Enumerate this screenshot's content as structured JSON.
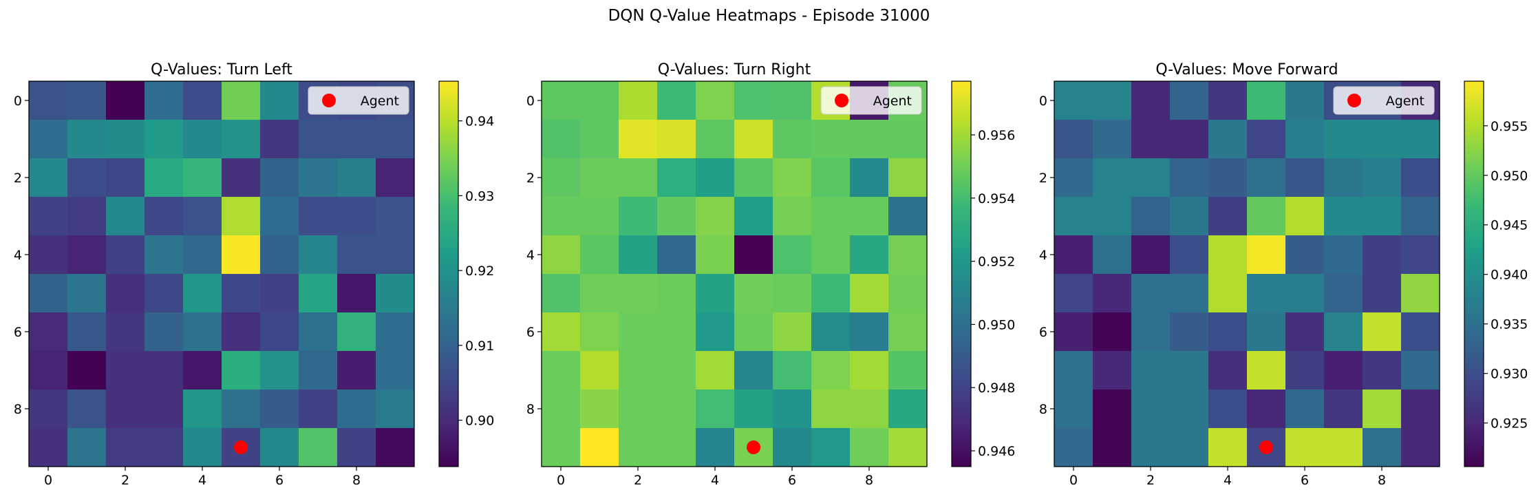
{
  "figure": {
    "suptitle": "DQN Q-Value Heatmaps - Episode 31000"
  },
  "colormap": {
    "name": "viridis",
    "stops": [
      "#440154",
      "#482878",
      "#3e4989",
      "#31688e",
      "#26828e",
      "#1f9e89",
      "#35b779",
      "#6ece58",
      "#b5de2b",
      "#fde725"
    ]
  },
  "agent_marker_color": "#ff0000",
  "chart_data": [
    {
      "type": "heatmap",
      "title": "Q-Values: Turn Left",
      "x_ticks": [
        0,
        2,
        4,
        6,
        8
      ],
      "y_ticks": [
        0,
        2,
        4,
        6,
        8
      ],
      "clim": [
        0.8938,
        0.9453
      ],
      "colorbar_ticks": [
        0.9,
        0.91,
        0.92,
        0.93,
        0.94
      ],
      "colorbar_tick_labels": [
        "0.90",
        "0.91",
        "0.92",
        "0.93",
        "0.94"
      ],
      "legend": {
        "label": "Agent",
        "location": "upper right"
      },
      "agent": {
        "x": 5,
        "y": 9
      },
      "values": [
        [
          0.907,
          0.908,
          0.894,
          0.912,
          0.906,
          0.934,
          0.918,
          0.906,
          0.905,
          0.906
        ],
        [
          0.912,
          0.918,
          0.919,
          0.922,
          0.918,
          0.92,
          0.902,
          0.907,
          0.907,
          0.907
        ],
        [
          0.918,
          0.906,
          0.905,
          0.925,
          0.928,
          0.901,
          0.91,
          0.914,
          0.916,
          0.899
        ],
        [
          0.904,
          0.903,
          0.918,
          0.905,
          0.907,
          0.939,
          0.912,
          0.906,
          0.906,
          0.907
        ],
        [
          0.901,
          0.899,
          0.904,
          0.914,
          0.911,
          0.945,
          0.91,
          0.917,
          0.907,
          0.907
        ],
        [
          0.91,
          0.914,
          0.901,
          0.905,
          0.921,
          0.905,
          0.904,
          0.924,
          0.897,
          0.919
        ],
        [
          0.9,
          0.908,
          0.902,
          0.91,
          0.913,
          0.901,
          0.905,
          0.913,
          0.927,
          0.912
        ],
        [
          0.899,
          0.894,
          0.901,
          0.901,
          0.897,
          0.926,
          0.92,
          0.911,
          0.898,
          0.912
        ],
        [
          0.902,
          0.907,
          0.901,
          0.901,
          0.921,
          0.913,
          0.909,
          0.904,
          0.912,
          0.915
        ],
        [
          0.901,
          0.914,
          0.903,
          0.903,
          0.918,
          0.904,
          0.918,
          0.931,
          0.904,
          0.895
        ]
      ]
    },
    {
      "type": "heatmap",
      "title": "Q-Values: Turn Right",
      "x_ticks": [
        0,
        2,
        4,
        6,
        8
      ],
      "y_ticks": [
        0,
        2,
        4,
        6,
        8
      ],
      "clim": [
        0.9455,
        0.9577
      ],
      "colorbar_ticks": [
        0.946,
        0.948,
        0.95,
        0.952,
        0.954,
        0.956
      ],
      "colorbar_tick_labels": [
        "0.946",
        "0.948",
        "0.950",
        "0.952",
        "0.954",
        "0.956"
      ],
      "legend": {
        "label": "Agent",
        "location": "upper right"
      },
      "agent": {
        "x": 5,
        "y": 9
      },
      "values": [
        [
          0.9546,
          0.9546,
          0.9562,
          0.9538,
          0.9553,
          0.9542,
          0.9543,
          0.9563,
          0.9463,
          0.9548
        ],
        [
          0.9543,
          0.9546,
          0.9572,
          0.957,
          0.9546,
          0.9568,
          0.9546,
          0.9547,
          0.9547,
          0.9547
        ],
        [
          0.9546,
          0.9549,
          0.9549,
          0.9532,
          0.9524,
          0.9545,
          0.9553,
          0.9545,
          0.9513,
          0.9556
        ],
        [
          0.9548,
          0.9548,
          0.9538,
          0.9547,
          0.9554,
          0.9523,
          0.9551,
          0.9548,
          0.9548,
          0.9502
        ],
        [
          0.9556,
          0.9545,
          0.9525,
          0.9496,
          0.9552,
          0.9455,
          0.9542,
          0.9548,
          0.9528,
          0.9551
        ],
        [
          0.9543,
          0.955,
          0.955,
          0.9549,
          0.9525,
          0.955,
          0.9549,
          0.9538,
          0.956,
          0.955
        ],
        [
          0.956,
          0.9553,
          0.9549,
          0.9549,
          0.9521,
          0.9549,
          0.9556,
          0.9515,
          0.9507,
          0.9551
        ],
        [
          0.9549,
          0.9563,
          0.9549,
          0.9549,
          0.956,
          0.9511,
          0.954,
          0.9553,
          0.956,
          0.9544
        ],
        [
          0.9549,
          0.9555,
          0.9549,
          0.9549,
          0.9539,
          0.9525,
          0.9518,
          0.9556,
          0.9556,
          0.9528
        ],
        [
          0.9549,
          0.9577,
          0.9549,
          0.9549,
          0.951,
          0.9552,
          0.9512,
          0.9521,
          0.955,
          0.956
        ]
      ]
    },
    {
      "type": "heatmap",
      "title": "Q-Values: Move Forward",
      "x_ticks": [
        0,
        2,
        4,
        6,
        8
      ],
      "y_ticks": [
        0,
        2,
        4,
        6,
        8
      ],
      "clim": [
        0.9206,
        0.9595
      ],
      "colorbar_ticks": [
        0.925,
        0.93,
        0.935,
        0.94,
        0.945,
        0.95,
        0.955
      ],
      "colorbar_tick_labels": [
        "0.925",
        "0.930",
        "0.935",
        "0.940",
        "0.945",
        "0.950",
        "0.955"
      ],
      "legend": {
        "label": "Agent",
        "location": "upper right"
      },
      "agent": {
        "x": 5,
        "y": 9
      },
      "values": [
        [
          0.938,
          0.938,
          0.925,
          0.933,
          0.927,
          0.947,
          0.936,
          0.93,
          0.93,
          0.925
        ],
        [
          0.931,
          0.934,
          0.925,
          0.925,
          0.936,
          0.929,
          0.937,
          0.939,
          0.939,
          0.939
        ],
        [
          0.934,
          0.938,
          0.938,
          0.933,
          0.932,
          0.935,
          0.931,
          0.936,
          0.937,
          0.93
        ],
        [
          0.938,
          0.938,
          0.933,
          0.936,
          0.928,
          0.95,
          0.955,
          0.939,
          0.939,
          0.933
        ],
        [
          0.924,
          0.935,
          0.923,
          0.93,
          0.955,
          0.959,
          0.932,
          0.934,
          0.928,
          0.929
        ],
        [
          0.929,
          0.925,
          0.935,
          0.935,
          0.955,
          0.937,
          0.937,
          0.933,
          0.928,
          0.953
        ],
        [
          0.924,
          0.921,
          0.935,
          0.932,
          0.93,
          0.936,
          0.926,
          0.938,
          0.956,
          0.93
        ],
        [
          0.935,
          0.925,
          0.936,
          0.936,
          0.926,
          0.956,
          0.928,
          0.924,
          0.927,
          0.934
        ],
        [
          0.935,
          0.921,
          0.936,
          0.936,
          0.93,
          0.925,
          0.934,
          0.927,
          0.954,
          0.925
        ],
        [
          0.934,
          0.921,
          0.936,
          0.936,
          0.956,
          0.929,
          0.956,
          0.956,
          0.935,
          0.925
        ]
      ]
    }
  ]
}
